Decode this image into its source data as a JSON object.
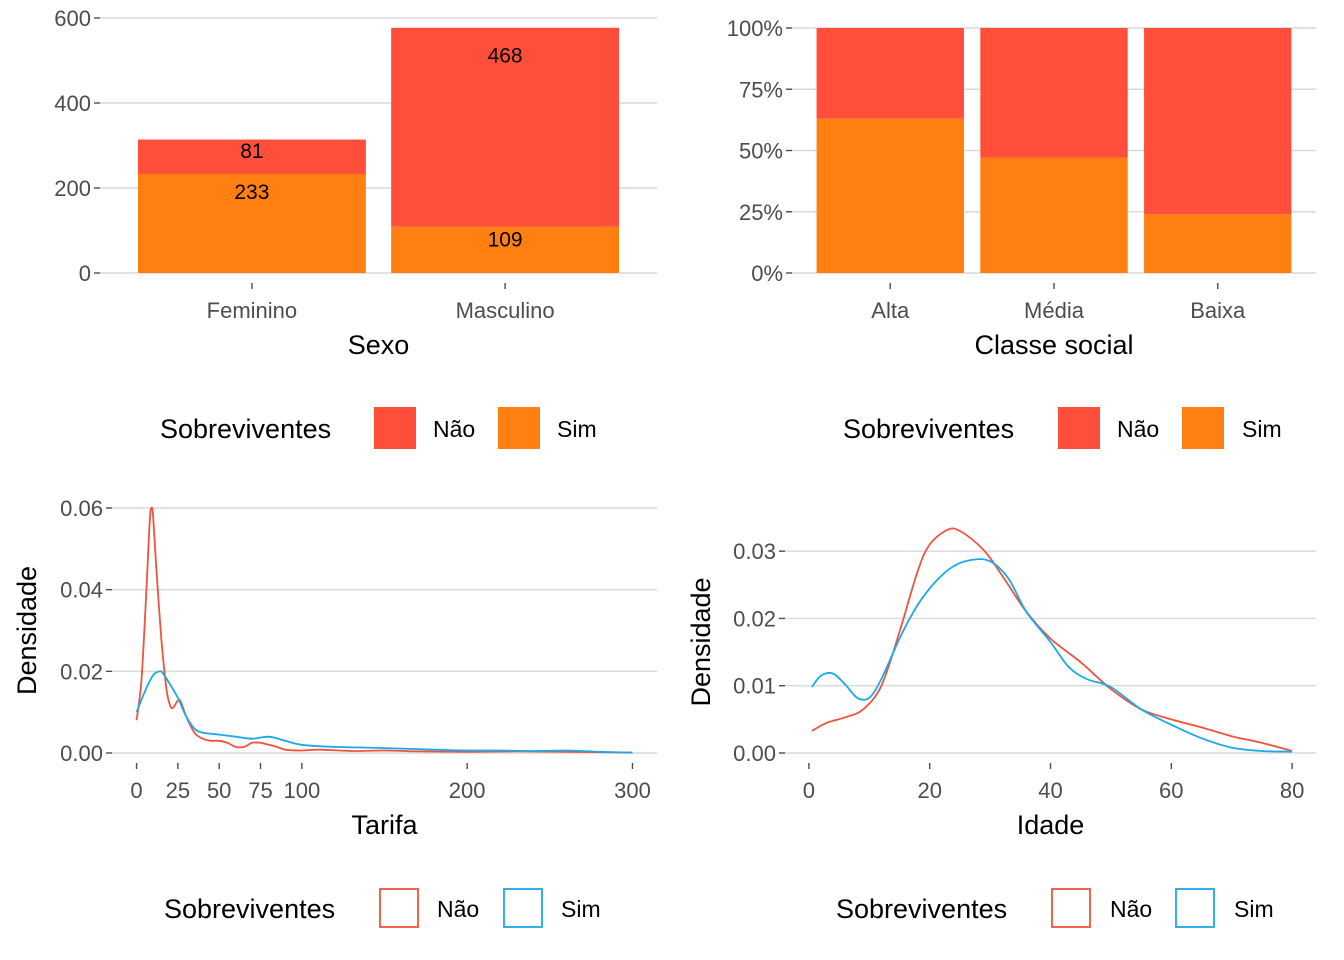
{
  "colors": {
    "nao_fill": "#FF4F3A",
    "sim_fill": "#FF7F10",
    "nao_line": "#F0523F",
    "sim_line": "#1BA9E8"
  },
  "chart_data": [
    {
      "type": "bar",
      "stacked": true,
      "categories": [
        "Feminino",
        "Masculino"
      ],
      "series": [
        {
          "name": "Não",
          "values": [
            81,
            468
          ]
        },
        {
          "name": "Sim",
          "values": [
            233,
            109
          ]
        }
      ],
      "xlabel": "Sexo",
      "ylabel": "",
      "ylim": [
        0,
        600
      ],
      "yticks": [
        "0",
        "200",
        "400",
        "600"
      ],
      "ytick_values": [
        0,
        200,
        400,
        600
      ],
      "data_labels": true,
      "legend": {
        "title": "Sobreviventes",
        "position": "bottom",
        "entries": [
          "Não",
          "Sim"
        ]
      },
      "grid": true
    },
    {
      "type": "bar",
      "stacked": true,
      "normalized": true,
      "categories": [
        "Alta",
        "Média",
        "Baixa"
      ],
      "series": [
        {
          "name": "Não",
          "values": [
            0.37,
            0.53,
            0.76
          ]
        },
        {
          "name": "Sim",
          "values": [
            0.63,
            0.47,
            0.24
          ]
        }
      ],
      "xlabel": "Classe social",
      "ylabel": "",
      "ylim": [
        0,
        1
      ],
      "yticks": [
        "0%",
        "25%",
        "50%",
        "75%",
        "100%"
      ],
      "ytick_values": [
        0,
        0.25,
        0.5,
        0.75,
        1
      ],
      "legend": {
        "title": "Sobreviventes",
        "position": "bottom",
        "entries": [
          "Não",
          "Sim"
        ]
      },
      "grid": true
    },
    {
      "type": "line",
      "series": [
        {
          "name": "Não",
          "x": [
            0,
            3,
            6,
            8,
            9,
            10,
            12,
            15,
            18,
            20,
            22,
            26,
            30,
            35,
            40,
            45,
            50,
            55,
            60,
            65,
            70,
            75,
            80,
            85,
            90,
            100,
            110,
            130,
            150,
            170,
            200,
            230,
            260,
            300
          ],
          "y": [
            0.008,
            0.018,
            0.04,
            0.057,
            0.06,
            0.058,
            0.045,
            0.028,
            0.016,
            0.012,
            0.011,
            0.013,
            0.009,
            0.005,
            0.0035,
            0.003,
            0.003,
            0.0025,
            0.0015,
            0.0015,
            0.0025,
            0.0025,
            0.002,
            0.0015,
            0.0008,
            0.0006,
            0.0008,
            0.0005,
            0.0006,
            0.0004,
            0.0003,
            0.0004,
            0.0003,
            0.0001
          ]
        },
        {
          "name": "Sim",
          "x": [
            0,
            5,
            10,
            14,
            16,
            20,
            25,
            30,
            35,
            40,
            50,
            60,
            70,
            80,
            90,
            100,
            120,
            150,
            180,
            200,
            220,
            240,
            260,
            280,
            300
          ],
          "y": [
            0.01,
            0.015,
            0.019,
            0.02,
            0.0195,
            0.017,
            0.0135,
            0.009,
            0.006,
            0.005,
            0.0045,
            0.004,
            0.0035,
            0.004,
            0.003,
            0.002,
            0.0015,
            0.0012,
            0.0008,
            0.0006,
            0.0006,
            0.0005,
            0.0006,
            0.0003,
            0.0001
          ]
        }
      ],
      "xlabel": "Tarifa",
      "ylabel": "Densidade",
      "xlim": [
        0,
        300
      ],
      "ylim": [
        0,
        0.06
      ],
      "xticks": [
        "0",
        "25",
        "50",
        "75",
        "100",
        "200",
        "300"
      ],
      "xtick_values": [
        0,
        25,
        50,
        75,
        100,
        200,
        300
      ],
      "yticks": [
        "0.00",
        "0.02",
        "0.04",
        "0.06"
      ],
      "ytick_values": [
        0,
        0.02,
        0.04,
        0.06
      ],
      "legend": {
        "title": "Sobreviventes",
        "position": "bottom",
        "entries": [
          "Não",
          "Sim"
        ]
      },
      "grid": true
    },
    {
      "type": "line",
      "series": [
        {
          "name": "Não",
          "x": [
            0.5,
            3,
            6,
            9,
            12,
            15,
            18,
            20,
            23,
            25,
            28,
            30,
            33,
            36,
            40,
            45,
            50,
            55,
            60,
            65,
            70,
            75,
            80
          ],
          "y": [
            0.0033,
            0.0045,
            0.0053,
            0.0065,
            0.01,
            0.018,
            0.027,
            0.031,
            0.0332,
            0.033,
            0.031,
            0.029,
            0.025,
            0.021,
            0.017,
            0.0135,
            0.0095,
            0.0065,
            0.005,
            0.0038,
            0.0025,
            0.0015,
            0.0003
          ]
        },
        {
          "name": "Sim",
          "x": [
            0.5,
            2,
            4,
            6,
            8,
            10,
            12,
            15,
            18,
            21,
            24,
            27,
            30,
            33,
            36,
            40,
            43,
            46,
            50,
            55,
            60,
            65,
            70,
            75,
            80
          ],
          "y": [
            0.0098,
            0.0115,
            0.0118,
            0.0102,
            0.0082,
            0.0082,
            0.011,
            0.017,
            0.022,
            0.0255,
            0.0278,
            0.0287,
            0.0285,
            0.026,
            0.021,
            0.0165,
            0.0128,
            0.011,
            0.0098,
            0.0065,
            0.0042,
            0.0022,
            0.0008,
            0.0003,
            0.0002
          ]
        }
      ],
      "xlabel": "Idade",
      "ylabel": "Densidade",
      "xlim": [
        0,
        80
      ],
      "ylim": [
        0,
        0.033
      ],
      "xticks": [
        "0",
        "20",
        "40",
        "60",
        "80"
      ],
      "xtick_values": [
        0,
        20,
        40,
        60,
        80
      ],
      "yticks": [
        "0.00",
        "0.01",
        "0.02",
        "0.03"
      ],
      "ytick_values": [
        0,
        0.01,
        0.02,
        0.03
      ],
      "legend": {
        "title": "Sobreviventes",
        "position": "bottom",
        "entries": [
          "Não",
          "Sim"
        ]
      },
      "grid": true
    }
  ]
}
